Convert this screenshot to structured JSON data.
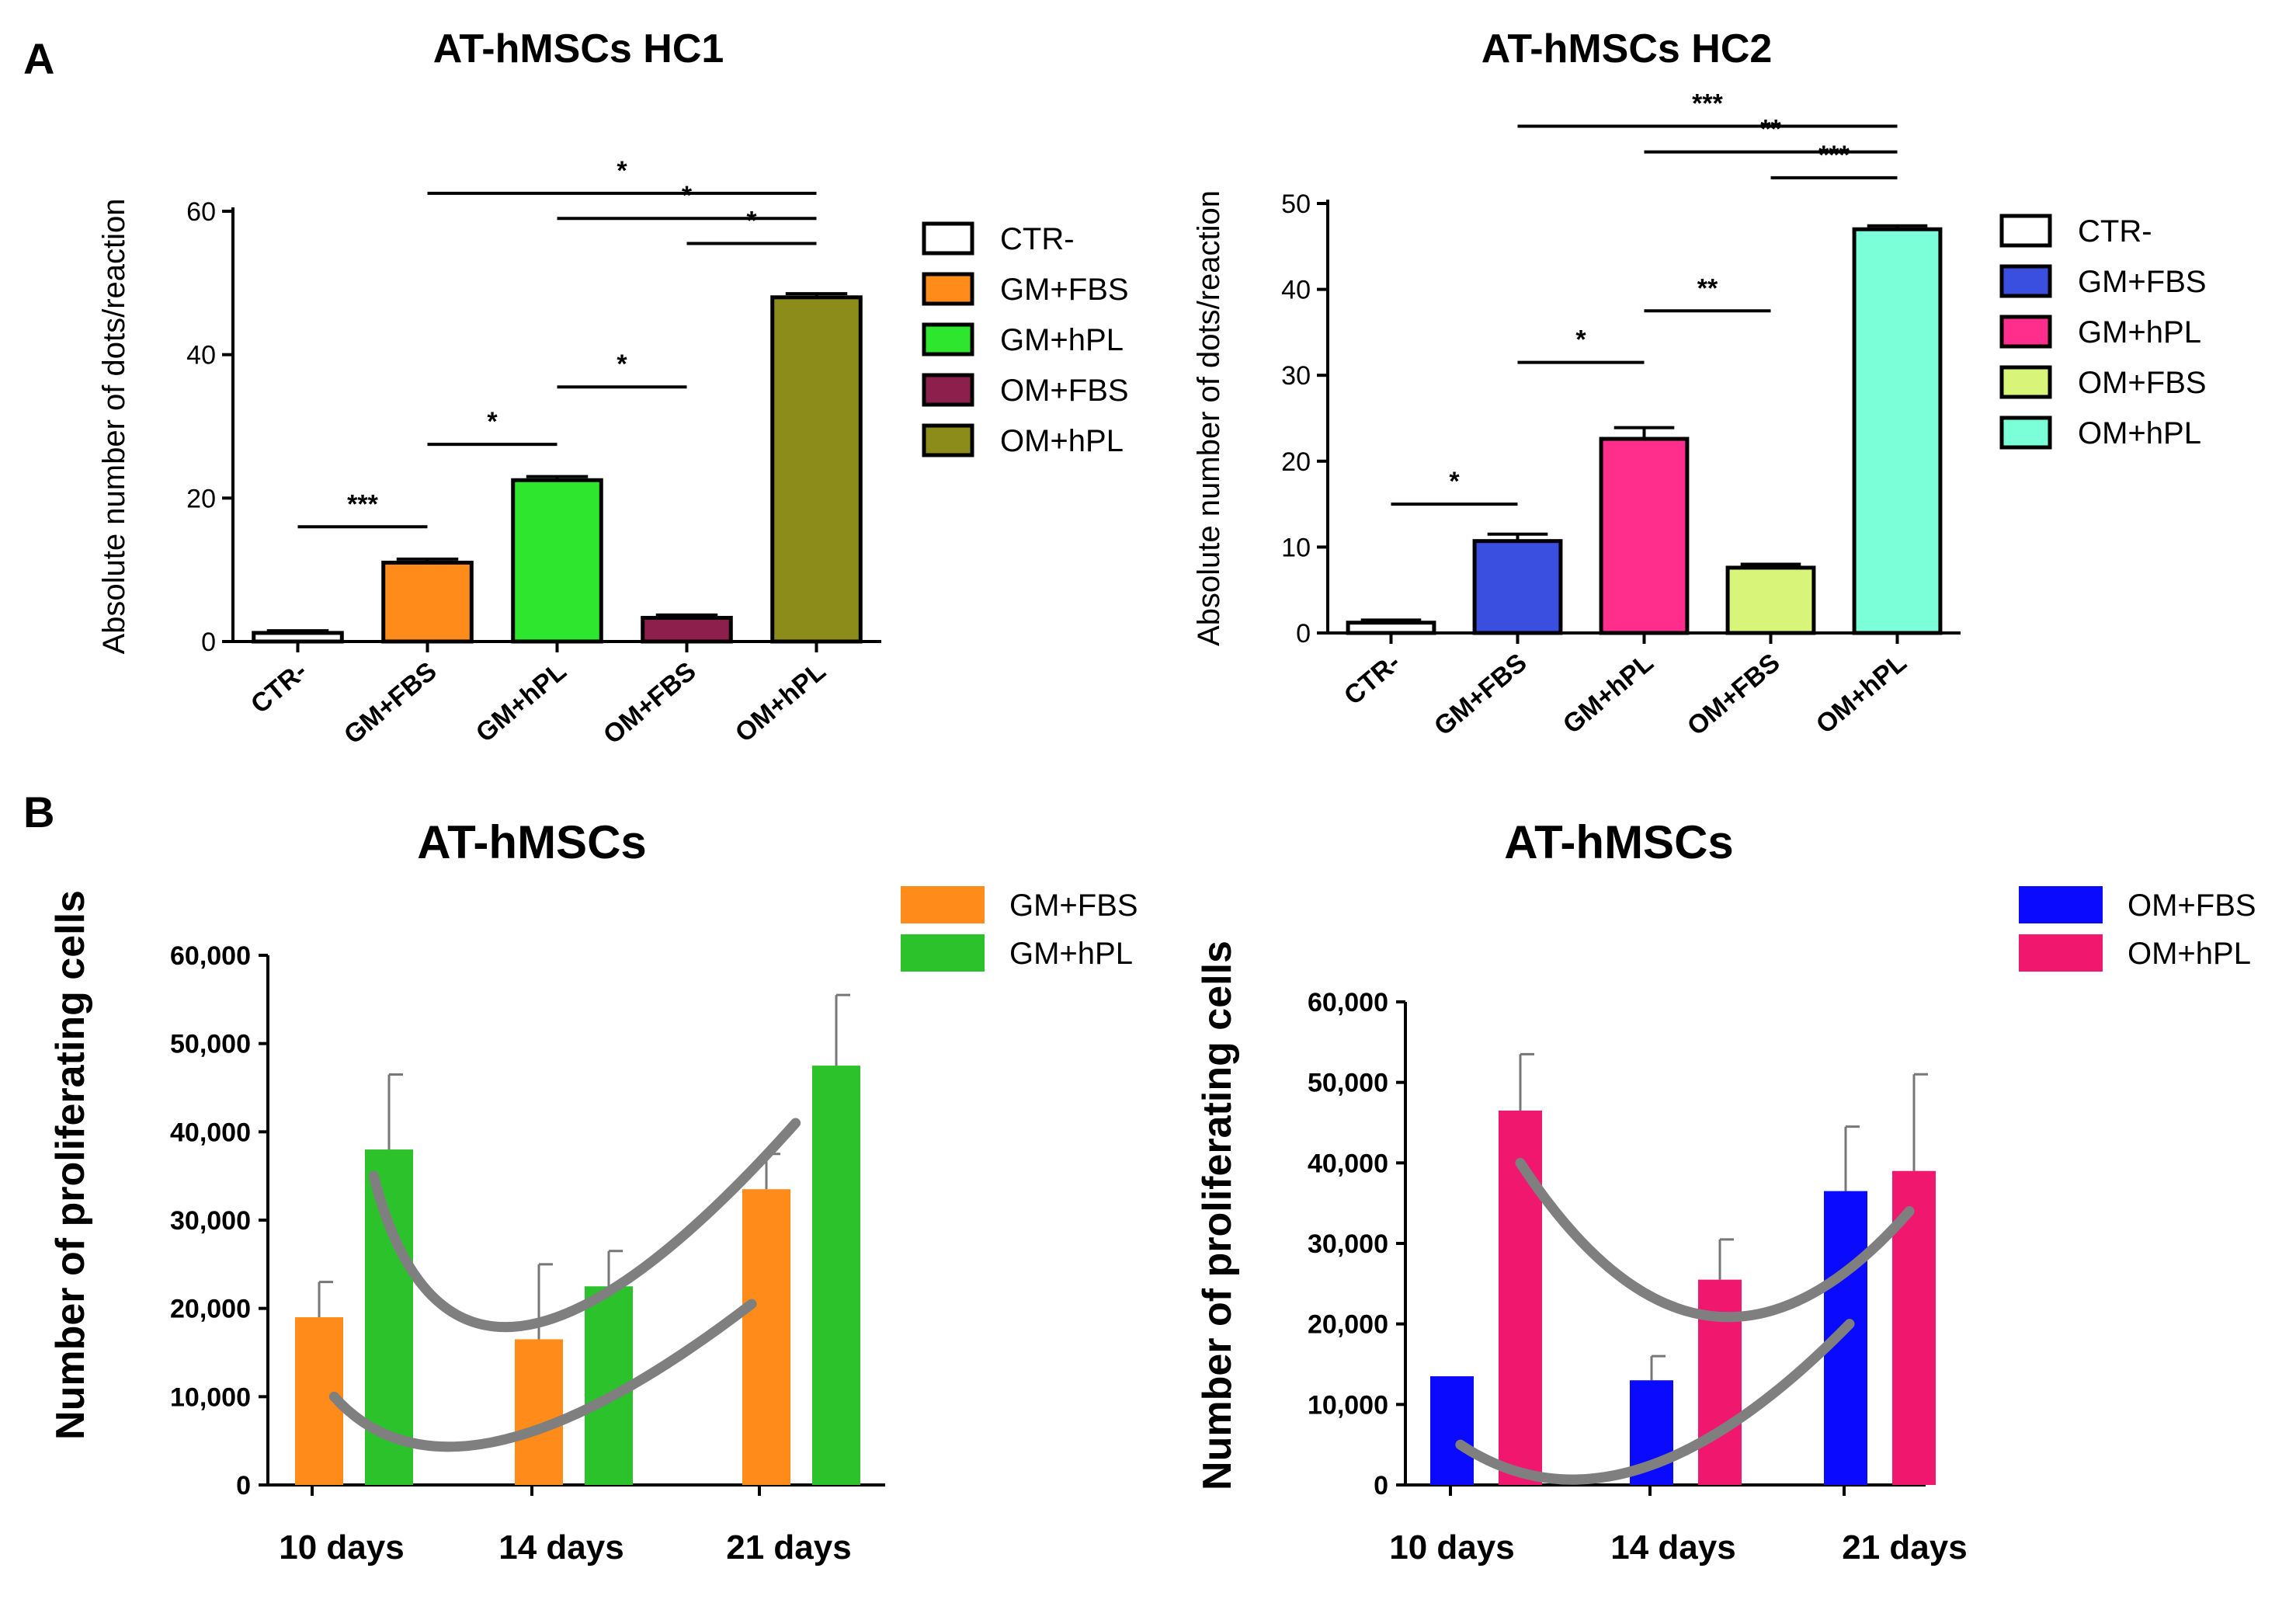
{
  "panel_labels": {
    "a": "A",
    "b": "B"
  },
  "chart_data": [
    {
      "id": "a1",
      "type": "bar",
      "title": "AT-hMSCs HC1",
      "xlabel": "",
      "ylabel": "Absolute number of dots/reaction",
      "categories": [
        "CTR-",
        "GM+FBS",
        "GM+hPL",
        "OM+FBS",
        "OM+hPL"
      ],
      "values": [
        1.2,
        11,
        22.5,
        3.3,
        48
      ],
      "errors": [
        0.3,
        0.5,
        0.5,
        0.4,
        0.5
      ],
      "colors": [
        "#ffffff",
        "#ff8c1a",
        "#2de62d",
        "#8c1f4b",
        "#8c8c1a"
      ],
      "ylim": [
        0,
        60
      ],
      "yticks": [
        0,
        20,
        40,
        60
      ],
      "legend": {
        "labels": [
          "CTR-",
          "GM+FBS",
          "GM+hPL",
          "OM+FBS",
          "OM+hPL"
        ],
        "colors": [
          "#ffffff",
          "#ff8c1a",
          "#2de62d",
          "#8c1f4b",
          "#8c8c1a"
        ]
      },
      "significance": [
        {
          "from": 0,
          "to": 1,
          "y": 16,
          "label": "***"
        },
        {
          "from": 1,
          "to": 2,
          "y": 27.5,
          "label": "*"
        },
        {
          "from": 2,
          "to": 3,
          "y": 35.5,
          "label": "*"
        },
        {
          "from": 1,
          "to": 4,
          "y": 62.5,
          "label": "*"
        },
        {
          "from": 2,
          "to": 4,
          "y": 59,
          "label": "*"
        },
        {
          "from": 3,
          "to": 4,
          "y": 55.5,
          "label": "*"
        }
      ]
    },
    {
      "id": "a2",
      "type": "bar",
      "title": "AT-hMSCs HC2",
      "xlabel": "",
      "ylabel": "Absolute number of dots/reaction",
      "categories": [
        "CTR-",
        "GM+FBS",
        "GM+hPL",
        "OM+FBS",
        "OM+hPL"
      ],
      "values": [
        1.2,
        10.7,
        22.6,
        7.6,
        47
      ],
      "errors": [
        0.3,
        0.8,
        1.3,
        0.4,
        0.4
      ],
      "colors": [
        "#ffffff",
        "#3a4fe0",
        "#ff2d8c",
        "#d8f57a",
        "#7affd8"
      ],
      "ylim": [
        0,
        50
      ],
      "yticks": [
        0,
        10,
        20,
        30,
        40,
        50
      ],
      "legend": {
        "labels": [
          "CTR-",
          "GM+FBS",
          "GM+hPL",
          "OM+FBS",
          "OM+hPL"
        ],
        "colors": [
          "#ffffff",
          "#3a4fe0",
          "#ff2d8c",
          "#d8f57a",
          "#7affd8"
        ]
      },
      "significance": [
        {
          "from": 0,
          "to": 1,
          "y": 15,
          "label": "*"
        },
        {
          "from": 1,
          "to": 2,
          "y": 31.5,
          "label": "*"
        },
        {
          "from": 2,
          "to": 3,
          "y": 37.5,
          "label": "**"
        },
        {
          "from": 1,
          "to": 4,
          "y": 59,
          "label": "***"
        },
        {
          "from": 2,
          "to": 4,
          "y": 56,
          "label": "**"
        },
        {
          "from": 3,
          "to": 4,
          "y": 53,
          "label": "***"
        }
      ]
    },
    {
      "id": "b1",
      "type": "bar",
      "title": "AT-hMSCs",
      "xlabel": "",
      "ylabel": "Number of proliferating cells",
      "categories": [
        "10 days",
        "14 days",
        "21 days"
      ],
      "series": [
        {
          "name": "GM+FBS",
          "color": "#ff8c1a",
          "values": [
            19000,
            16500,
            33500
          ],
          "errors": [
            4000,
            8500,
            4000
          ]
        },
        {
          "name": "GM+hPL",
          "color": "#2bc22b",
          "values": [
            38000,
            22500,
            47500
          ],
          "errors": [
            8500,
            4000,
            8000
          ]
        }
      ],
      "trendlines": [
        {
          "series": "GM+hPL",
          "x": [
            0.28,
            0.95,
            2.2
          ],
          "y": [
            35000,
            18000,
            41000
          ]
        },
        {
          "series": "GM+FBS",
          "x": [
            0.1,
            0.85,
            2.0
          ],
          "y": [
            10000,
            5000,
            20500
          ]
        }
      ],
      "ylim": [
        0,
        60000
      ],
      "yticks": [
        "0",
        "10,000",
        "20,000",
        "30,000",
        "40,000",
        "50,000",
        "60,000"
      ],
      "ytick_values": [
        0,
        10000,
        20000,
        30000,
        40000,
        50000,
        60000
      ]
    },
    {
      "id": "b2",
      "type": "bar",
      "title": "AT-hMSCs",
      "xlabel": "",
      "ylabel": "Number of proliferating cells",
      "categories": [
        "10 days",
        "14 days",
        "21 days"
      ],
      "series": [
        {
          "name": "OM+FBS",
          "color": "#0a0aff",
          "values": [
            13500,
            13000,
            36500
          ],
          "errors": [
            0,
            3000,
            8000
          ]
        },
        {
          "name": "OM+hPL",
          "color": "#f0186e",
          "values": [
            46500,
            25500,
            39000
          ],
          "errors": [
            7000,
            5000,
            12000
          ]
        }
      ],
      "trendlines": [
        {
          "series": "OM+hPL",
          "x": [
            0.35,
            1.3,
            2.3
          ],
          "y": [
            40000,
            21000,
            34000
          ]
        },
        {
          "series": "OM+FBS",
          "x": [
            0.05,
            0.95,
            2.0
          ],
          "y": [
            5000,
            2000,
            20000
          ]
        }
      ],
      "ylim": [
        0,
        60000
      ],
      "yticks": [
        "0",
        "10,000",
        "20,000",
        "30,000",
        "40,000",
        "50,000",
        "60,000"
      ],
      "ytick_values": [
        0,
        10000,
        20000,
        30000,
        40000,
        50000,
        60000
      ]
    }
  ]
}
